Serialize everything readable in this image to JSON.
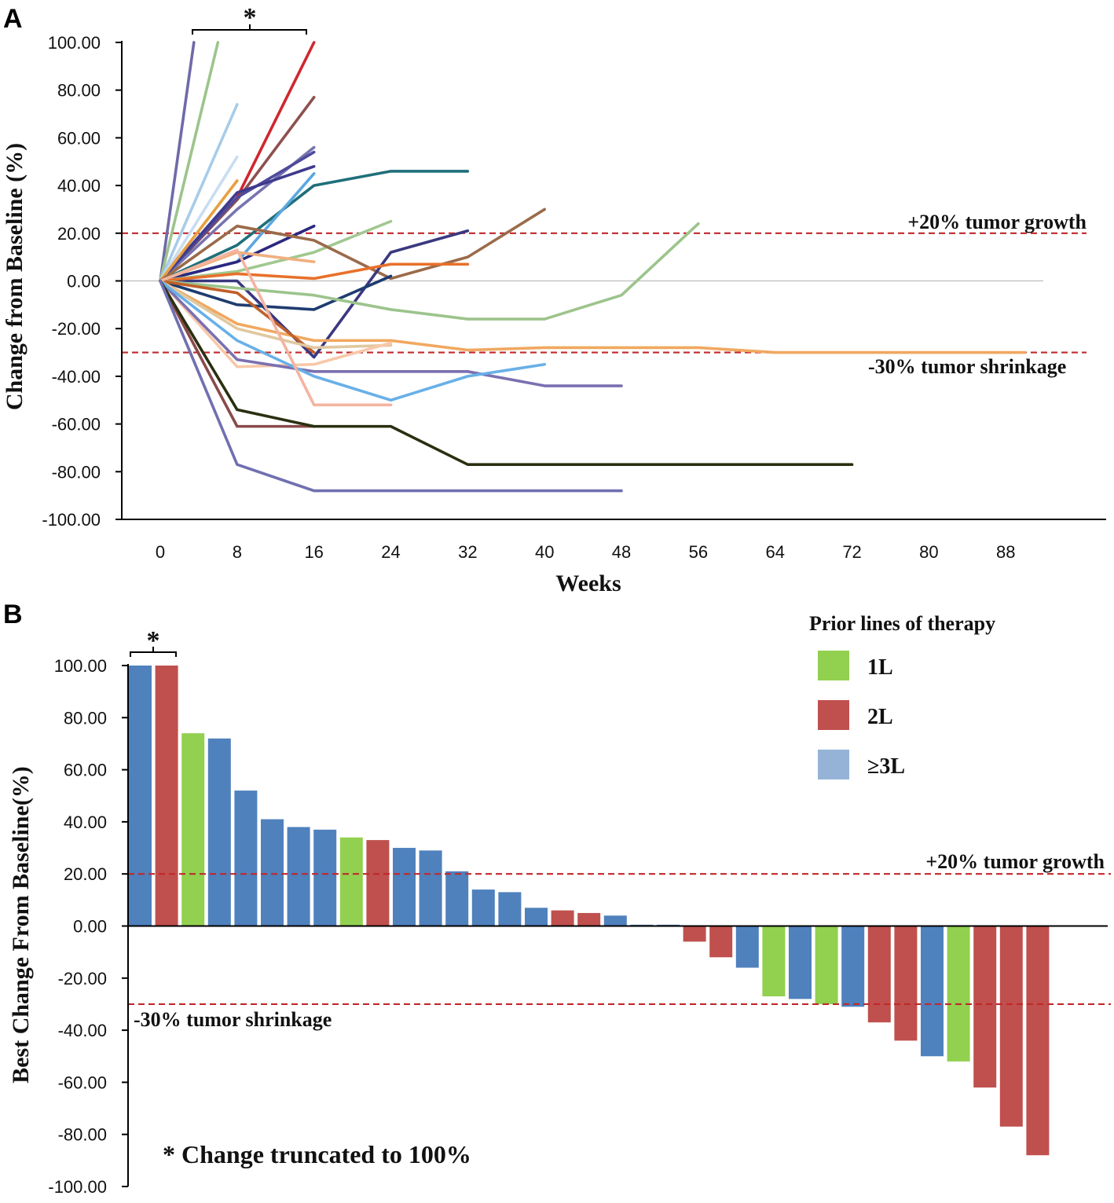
{
  "chart_data": [
    {
      "type": "line",
      "panel_label": "A",
      "xlabel": "Weeks",
      "ylabel": "Change from Baseline (%)",
      "ylim": [
        -100,
        100
      ],
      "xlim": [
        -4,
        92
      ],
      "x_ticks": [
        "0",
        "8",
        "16",
        "24",
        "32",
        "40",
        "48",
        "56",
        "64",
        "72",
        "80",
        "88"
      ],
      "y_ticks": [
        "100.00",
        "80.00",
        "60.00",
        "40.00",
        "20.00",
        "0.00",
        "-20.00",
        "-40.00",
        "-60.00",
        "-80.00",
        "-100.00"
      ],
      "reference_lines": [
        {
          "y": 20,
          "label": "+20% tumor growth",
          "color": "#c0282c"
        },
        {
          "y": -30,
          "label": "-30% tumor shrinkage",
          "color": "#c0282c"
        }
      ],
      "annotation": "*",
      "series": [
        {
          "color": "#6f6aa8",
          "x": [
            0,
            3.5
          ],
          "y": [
            0,
            100
          ]
        },
        {
          "color": "#9cc48c",
          "x": [
            0,
            6
          ],
          "y": [
            0,
            100
          ]
        },
        {
          "color": "#d0272f",
          "x": [
            0,
            8,
            16
          ],
          "y": [
            0,
            35,
            100
          ]
        },
        {
          "color": "#a8cce8",
          "x": [
            0,
            8
          ],
          "y": [
            0,
            74
          ]
        },
        {
          "color": "#8d5150",
          "x": [
            0,
            8,
            16
          ],
          "y": [
            0,
            34,
            77
          ]
        },
        {
          "color": "#7774b0",
          "x": [
            0,
            8,
            16
          ],
          "y": [
            0,
            30,
            56
          ]
        },
        {
          "color": "#4f4a9a",
          "x": [
            0,
            8,
            16
          ],
          "y": [
            0,
            35,
            54
          ]
        },
        {
          "color": "#c8ddf2",
          "x": [
            0,
            8
          ],
          "y": [
            0,
            52
          ]
        },
        {
          "color": "#3f3a8e",
          "x": [
            0,
            8,
            16
          ],
          "y": [
            0,
            37,
            48
          ]
        },
        {
          "color": "#1f6f7a",
          "x": [
            0,
            8,
            16,
            24,
            32
          ],
          "y": [
            0,
            15,
            40,
            46,
            46
          ]
        },
        {
          "color": "#5aa8e0",
          "x": [
            0,
            8,
            16
          ],
          "y": [
            0,
            8,
            45
          ]
        },
        {
          "color": "#e6a040",
          "x": [
            0,
            8
          ],
          "y": [
            0,
            42
          ]
        },
        {
          "color": "#2b2880",
          "x": [
            0,
            8,
            16
          ],
          "y": [
            0,
            8,
            23
          ]
        },
        {
          "color": "#a0c890",
          "x": [
            0,
            8,
            16,
            24
          ],
          "y": [
            0,
            4,
            12,
            25
          ]
        },
        {
          "color": "#9a6b4a",
          "x": [
            0,
            8,
            16,
            24,
            32,
            40
          ],
          "y": [
            0,
            23,
            17,
            1,
            10,
            30
          ]
        },
        {
          "color": "#3a3880",
          "x": [
            0,
            8,
            16,
            24,
            32
          ],
          "y": [
            0,
            0,
            -32,
            12,
            21
          ]
        },
        {
          "color": "#e8702a",
          "x": [
            0,
            8,
            16,
            24,
            32
          ],
          "y": [
            0,
            3,
            1,
            7,
            7
          ]
        },
        {
          "color": "#f0b080",
          "x": [
            0,
            8,
            16
          ],
          "y": [
            0,
            12,
            8
          ]
        },
        {
          "color": "#1f3c70",
          "x": [
            0,
            8,
            16,
            24
          ],
          "y": [
            0,
            -10,
            -12,
            2
          ]
        },
        {
          "color": "#9cc48c",
          "x": [
            0,
            8,
            16,
            24,
            32,
            40,
            48,
            56
          ],
          "y": [
            0,
            -3,
            -6,
            -12,
            -16,
            -16,
            -6,
            24
          ]
        },
        {
          "color": "#f0a860",
          "x": [
            0,
            8,
            16,
            24,
            32,
            40,
            48,
            56,
            64,
            72,
            80,
            88,
            90
          ],
          "y": [
            0,
            -18,
            -25,
            -25,
            -29,
            -28,
            -28,
            -28,
            -30,
            -30,
            -30,
            -30,
            -30
          ]
        },
        {
          "color": "#c0602a",
          "x": [
            0,
            8,
            16
          ],
          "y": [
            0,
            -5,
            -30
          ]
        },
        {
          "color": "#e0c8a0",
          "x": [
            0,
            8,
            16,
            24
          ],
          "y": [
            0,
            -20,
            -28,
            -27
          ]
        },
        {
          "color": "#f8c8a8",
          "x": [
            0,
            8,
            16,
            24
          ],
          "y": [
            0,
            -36,
            -35,
            -26
          ]
        },
        {
          "color": "#7a70b0",
          "x": [
            0,
            8,
            16,
            24,
            32,
            40,
            48
          ],
          "y": [
            0,
            -33,
            -38,
            -38,
            -38,
            -44,
            -44
          ]
        },
        {
          "color": "#68b0e8",
          "x": [
            0,
            8,
            16,
            24,
            32,
            40
          ],
          "y": [
            0,
            -25,
            -40,
            -50,
            -40,
            -35
          ]
        },
        {
          "color": "#f4b4a0",
          "x": [
            0,
            8,
            16,
            24
          ],
          "y": [
            0,
            13,
            -52,
            -52
          ]
        },
        {
          "color": "#8a4a4a",
          "x": [
            0,
            8,
            16
          ],
          "y": [
            0,
            -61,
            -61
          ]
        },
        {
          "color": "#2a3010",
          "x": [
            0,
            8,
            16,
            24,
            32,
            40,
            48,
            56,
            64,
            72
          ],
          "y": [
            0,
            -54,
            -61,
            -61,
            -77,
            -77,
            -77,
            -77,
            -77,
            -77
          ]
        },
        {
          "color": "#7070b0",
          "x": [
            0,
            8,
            16,
            24,
            32,
            40,
            48
          ],
          "y": [
            0,
            -77,
            -88,
            -88,
            -88,
            -88,
            -88
          ]
        }
      ]
    },
    {
      "type": "bar",
      "panel_label": "B",
      "ylabel": "Best Change From Baseline(%)",
      "ylim": [
        -100,
        100
      ],
      "y_ticks": [
        "100.00",
        "80.00",
        "60.00",
        "40.00",
        "20.00",
        "0.00",
        "-20.00",
        "-40.00",
        "-60.00",
        "-80.00",
        "-100.00"
      ],
      "reference_lines": [
        {
          "y": 20,
          "label": "+20% tumor growth",
          "color": "#c0282c"
        },
        {
          "y": -30,
          "label": "-30% tumor shrinkage",
          "color": "#c0282c"
        }
      ],
      "annotation": "*",
      "footnote": "* Change truncated to 100%",
      "legend": {
        "title": "Prior lines of therapy",
        "entries": [
          {
            "label": "1L",
            "color": "#92d050"
          },
          {
            "label": "2L",
            "color": "#c0504d"
          },
          {
            "label": "≥3L",
            "color": "#95b3d7"
          }
        ]
      },
      "category_colors": {
        "1L": "#92d050",
        "2L": "#c0504d",
        "3L": "#4f81bd"
      },
      "values": [
        100,
        100,
        74,
        72,
        52,
        41,
        38,
        37,
        34,
        33,
        30,
        29,
        21,
        14,
        13,
        7,
        6,
        5,
        4,
        0.5,
        0.5,
        -6,
        -12,
        -16,
        -27,
        -28,
        -30,
        -31,
        -37,
        -44,
        -50,
        -52,
        -62,
        -77,
        -88
      ],
      "lines": [
        "3L",
        "2L",
        "1L",
        "3L",
        "3L",
        "3L",
        "3L",
        "3L",
        "1L",
        "2L",
        "3L",
        "3L",
        "3L",
        "3L",
        "3L",
        "3L",
        "2L",
        "2L",
        "3L",
        "3L",
        "3L",
        "2L",
        "2L",
        "3L",
        "1L",
        "3L",
        "1L",
        "3L",
        "2L",
        "2L",
        "3L",
        "1L",
        "2L",
        "2L",
        "2L"
      ]
    }
  ]
}
